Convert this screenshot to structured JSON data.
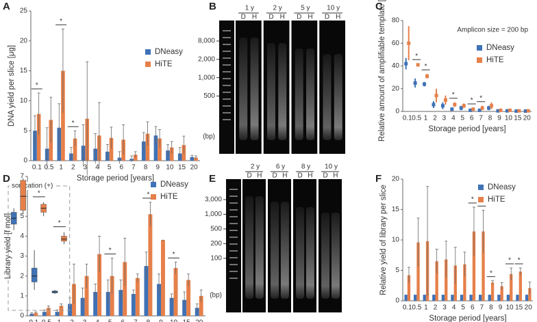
{
  "chart_data": [
    {
      "type": "bar",
      "label": "A",
      "ylabel": "DNA yield per slice [μg]",
      "xlabel": "Storage period [years]",
      "categories": [
        "0.1",
        "0.5",
        "1",
        "2",
        "3",
        "4",
        "5",
        "6",
        "7",
        "8",
        "9",
        "10",
        "15",
        "20"
      ],
      "series": [
        {
          "name": "DNeasy",
          "color": "#3f72b6",
          "values": [
            5,
            2,
            5.5,
            1.2,
            2.5,
            2,
            1.5,
            0.5,
            0.3,
            3.2,
            4.2,
            1.7,
            1.2,
            0.6
          ],
          "errors": [
            2.5,
            3.5,
            4,
            1,
            3.5,
            2.5,
            1.2,
            1,
            0.5,
            1.5,
            1.5,
            1,
            1,
            0.3
          ]
        },
        {
          "name": "HiTE",
          "color": "#e6804a",
          "values": [
            7.8,
            6.8,
            15,
            3.7,
            7,
            4.2,
            3.8,
            3.5,
            1,
            4.5,
            3.7,
            2.2,
            2.6,
            0.5
          ],
          "errors": [
            3.5,
            3.8,
            7,
            1.3,
            9.5,
            5.5,
            1.8,
            2.5,
            0.5,
            2,
            1.5,
            1,
            1.5,
            0.3
          ]
        }
      ],
      "significant": [
        true,
        false,
        true,
        true,
        false,
        false,
        false,
        false,
        false,
        false,
        false,
        false,
        false,
        false
      ],
      "significance_label": "*",
      "ylim": [
        0,
        25
      ],
      "yticks": [
        0,
        5,
        10,
        15,
        20,
        25
      ],
      "legend": "right"
    },
    {
      "type": "scatter",
      "label": "C",
      "ylabel": "Relative amount of amplifiable template [%]",
      "xlabel": "Storage period [years]",
      "annotation": "Amplicon size = 200 bp",
      "categories": [
        "0.1",
        "0.5",
        "1",
        "2",
        "3",
        "4",
        "5",
        "6",
        "7",
        "8",
        "9",
        "10",
        "15",
        "20"
      ],
      "series": [
        {
          "name": "DNeasy",
          "color": "#3f72b6",
          "values": [
            42,
            25,
            24,
            6,
            5,
            2,
            3,
            1,
            1,
            3,
            0.5,
            0.5,
            0.3,
            0.3
          ],
          "errors": [
            5,
            4,
            2,
            3,
            3,
            1.5,
            2,
            1,
            1,
            2,
            0.5,
            0.5,
            0.3,
            0.3
          ]
        },
        {
          "name": "HiTE",
          "color": "#e6804a",
          "values": [
            60,
            41,
            31,
            14,
            10,
            6,
            5,
            2,
            3,
            5,
            1,
            1,
            0.5,
            0.5
          ],
          "errors": [
            15,
            1,
            2,
            6,
            4,
            2,
            2,
            1,
            2,
            3,
            1,
            1,
            0.5,
            0.5
          ]
        }
      ],
      "significant": [
        false,
        true,
        true,
        false,
        false,
        true,
        false,
        true,
        true,
        false,
        false,
        false,
        false,
        false
      ],
      "significance_label": "*",
      "ylim": [
        0,
        80
      ],
      "yticks": [
        0,
        20,
        40,
        60,
        80
      ],
      "legend": "right"
    },
    {
      "type": "bar",
      "label": "D",
      "ylabel": "Library yield [f mol]",
      "xlabel": "Storage period [years]",
      "categories": [
        "0.1",
        "0.5",
        "1",
        "2",
        "3",
        "4",
        "5",
        "6",
        "7",
        "8",
        "9",
        "10",
        "15",
        "20"
      ],
      "series": [
        {
          "name": "DNeasy",
          "color": "#3f72b6",
          "values": [
            0.1,
            0.2,
            0.2,
            0.6,
            0.9,
            1.2,
            1.2,
            1.3,
            1.1,
            2.5,
            1.6,
            0.9,
            0.8,
            0.4
          ],
          "errors": [
            0.05,
            0.1,
            0.1,
            0.3,
            0.5,
            0.4,
            0.6,
            0.5,
            0.2,
            0.7,
            0.5,
            0.2,
            0.4,
            0.2
          ]
        },
        {
          "name": "HiTE",
          "color": "#e6804a",
          "values": [
            0.15,
            0.4,
            0.5,
            1.6,
            2,
            3.1,
            2,
            2.7,
            1.9,
            5.1,
            3.8,
            2.4,
            1.8,
            1
          ],
          "errors": [
            0.05,
            0.1,
            0.1,
            1,
            0.6,
            0.9,
            0.9,
            1.2,
            0.2,
            0.6,
            0,
            0.3,
            0.3,
            0.3
          ]
        }
      ],
      "significant": [
        false,
        false,
        false,
        false,
        false,
        false,
        true,
        false,
        false,
        true,
        false,
        true,
        false,
        false
      ],
      "significance_label": "*",
      "ylim": [
        0,
        7
      ],
      "yticks": [
        0,
        1,
        2,
        3,
        4,
        5,
        6,
        7
      ],
      "legend": "right",
      "inset": {
        "label": "sonication (+)",
        "significant": [
          false,
          true,
          true
        ],
        "series": [
          {
            "name": "DNeasy",
            "boxes": [
              {
                "low": 4.3,
                "q1": 4.6,
                "median": 4.9,
                "q3": 5.2,
                "high": 5.4
              },
              {
                "low": 1.3,
                "q1": 1.7,
                "median": 2.0,
                "q3": 2.4,
                "high": 3.3
              },
              {
                "low": 1.1,
                "q1": 1.15,
                "median": 1.2,
                "q3": 1.25,
                "high": 1.3
              }
            ]
          },
          {
            "name": "HiTE",
            "boxes": [
              {
                "low": 5.1,
                "q1": 5.3,
                "median": 6.0,
                "q3": 6.8,
                "high": 6.9
              },
              {
                "low": 5.0,
                "q1": 5.2,
                "median": 5.4,
                "q3": 5.6,
                "high": 5.7
              },
              {
                "low": 3.6,
                "q1": 3.75,
                "median": 3.85,
                "q3": 4.0,
                "high": 4.2
              }
            ]
          }
        ]
      }
    },
    {
      "type": "bar",
      "label": "F",
      "ylabel": "Relative yield of library per slice",
      "xlabel": "Storage period [years]",
      "categories": [
        "0.1",
        "0.5",
        "1",
        "2",
        "3",
        "4",
        "5",
        "6",
        "7",
        "8",
        "9",
        "10",
        "15",
        "20"
      ],
      "series": [
        {
          "name": "DNeasy",
          "color": "#3f72b6",
          "values": [
            1,
            1,
            1,
            1,
            1,
            1,
            1,
            1,
            1,
            1,
            1,
            1,
            1,
            1
          ]
        },
        {
          "name": "HiTE",
          "color": "#e6804a",
          "values": [
            4.2,
            9.6,
            9.8,
            6.5,
            6.8,
            5.8,
            6,
            11.4,
            11.4,
            3,
            2.4,
            4.4,
            4.8,
            2.1
          ],
          "errors": [
            1.3,
            4,
            9,
            2,
            3,
            3,
            2,
            4,
            3.5,
            0.3,
            0.6,
            1,
            0.6,
            1
          ]
        }
      ],
      "significant": [
        false,
        false,
        false,
        false,
        false,
        false,
        false,
        true,
        true,
        true,
        false,
        true,
        true,
        false
      ],
      "significance_label": "*",
      "ylim": [
        0,
        20
      ],
      "yticks": [
        0,
        5,
        10,
        15,
        20
      ],
      "legend": "right"
    }
  ],
  "gels": [
    {
      "label": "B",
      "lanes": [
        "1 y",
        "2 y",
        "5 y",
        "10 y"
      ],
      "lane_letters": [
        "D",
        "H"
      ],
      "ladder": [
        "8,000",
        "2,000",
        "1,000",
        "500"
      ],
      "unit": "(bp)"
    },
    {
      "label": "E",
      "lanes": [
        "2 y",
        "6 y",
        "8 y",
        "10 y"
      ],
      "lane_letters": [
        "D",
        "H"
      ],
      "ladder": [
        "3,000",
        "1,000",
        "500",
        "200",
        "100"
      ],
      "unit": "(bp)"
    }
  ]
}
